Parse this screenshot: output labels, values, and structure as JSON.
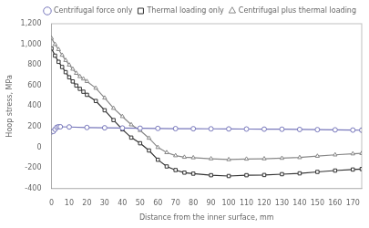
{
  "chart_data": {
    "type": "line",
    "xlabel": "Distance from the inner surface, mm",
    "ylabel": "Hoop stress, MPa",
    "xlim": [
      0,
      175
    ],
    "ylim": [
      -400,
      1200
    ],
    "xticks": [
      0,
      10,
      20,
      30,
      40,
      50,
      60,
      70,
      80,
      90,
      100,
      110,
      120,
      130,
      140,
      150,
      160,
      170
    ],
    "yticks": [
      -400,
      -200,
      0,
      200,
      400,
      600,
      800,
      1000,
      1200
    ],
    "grid": false,
    "legend": "upper right",
    "series": [
      {
        "name": "Centrifugal force only",
        "color": "#7777bb",
        "marker": "circle",
        "x": [
          0,
          1,
          2,
          3,
          4,
          5,
          10,
          20,
          30,
          40,
          50,
          60,
          70,
          80,
          90,
          100,
          110,
          120,
          130,
          140,
          150,
          160,
          170,
          175
        ],
        "values": [
          150,
          155,
          175,
          195,
          200,
          200,
          198,
          193,
          190,
          188,
          186,
          184,
          182,
          181,
          180,
          179,
          178,
          177,
          176,
          174,
          172,
          170,
          168,
          167
        ]
      },
      {
        "name": "Thermal loading only",
        "color": "#333333",
        "marker": "square",
        "x": [
          0,
          2,
          4,
          6,
          8,
          10,
          12,
          14,
          16,
          18,
          20,
          25,
          30,
          35,
          40,
          45,
          50,
          55,
          60,
          65,
          70,
          75,
          80,
          90,
          100,
          110,
          120,
          130,
          140,
          150,
          160,
          170,
          175
        ],
        "values": [
          960,
          890,
          830,
          780,
          730,
          680,
          640,
          600,
          568,
          540,
          510,
          450,
          360,
          265,
          175,
          95,
          40,
          -30,
          -120,
          -185,
          -220,
          -245,
          -255,
          -270,
          -278,
          -270,
          -268,
          -260,
          -252,
          -238,
          -225,
          -215,
          -210
        ]
      },
      {
        "name": "Centrifugal plus thermal loading",
        "color": "#888888",
        "marker": "triangle",
        "x": [
          0,
          2,
          4,
          6,
          8,
          10,
          12,
          14,
          16,
          18,
          20,
          25,
          30,
          35,
          40,
          45,
          50,
          55,
          60,
          65,
          70,
          75,
          80,
          90,
          100,
          110,
          120,
          130,
          140,
          150,
          160,
          170,
          175
        ],
        "values": [
          1060,
          1000,
          950,
          895,
          845,
          800,
          760,
          720,
          688,
          665,
          640,
          575,
          480,
          380,
          300,
          220,
          165,
          90,
          0,
          -50,
          -80,
          -95,
          -100,
          -110,
          -118,
          -113,
          -110,
          -105,
          -98,
          -85,
          -72,
          -62,
          -58
        ]
      }
    ]
  }
}
